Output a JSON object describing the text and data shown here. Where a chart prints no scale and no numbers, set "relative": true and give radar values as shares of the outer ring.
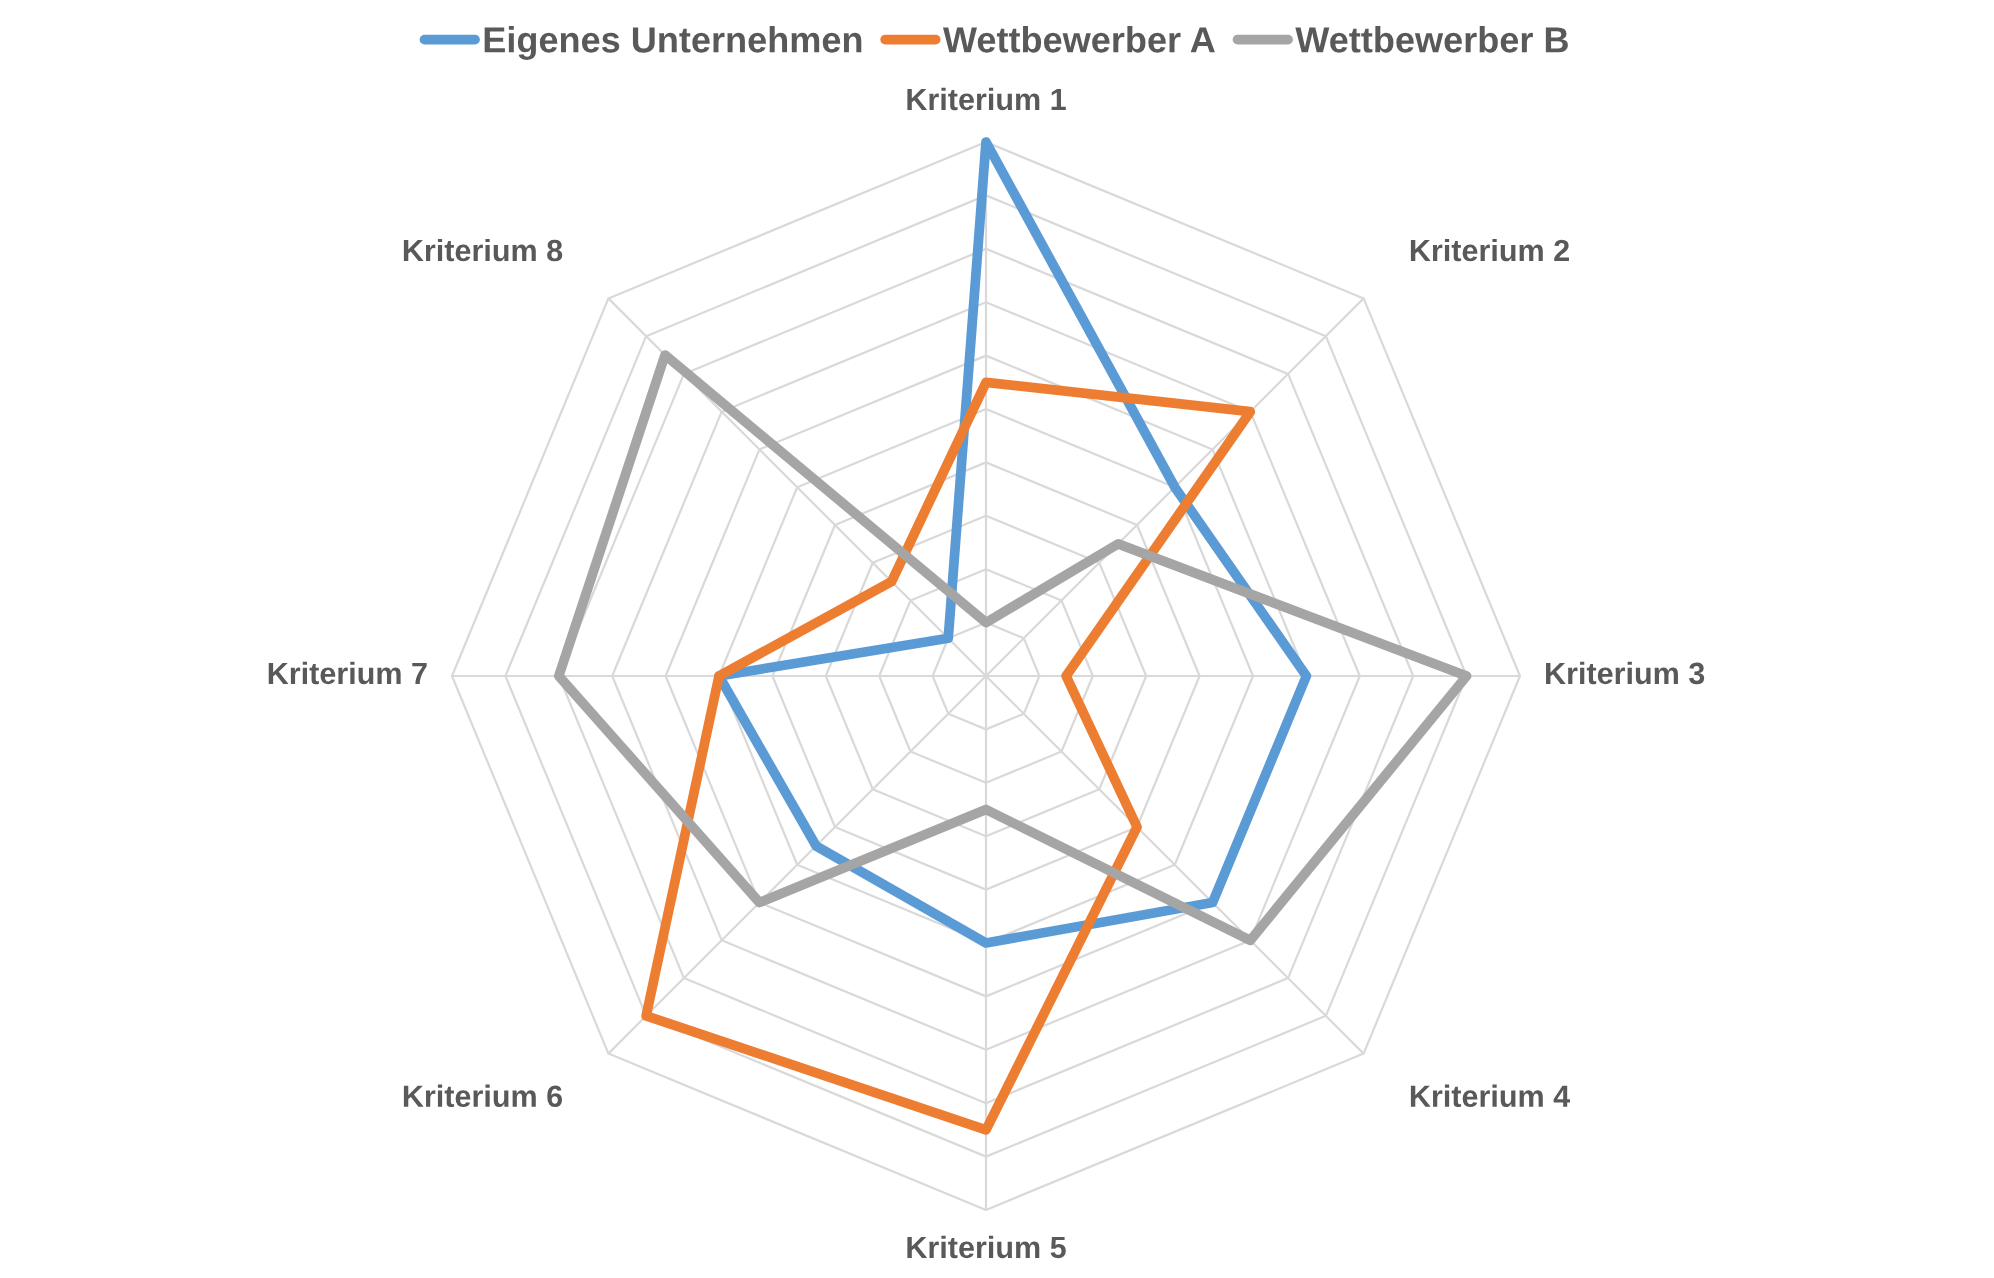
{
  "chart_data": {
    "type": "radar",
    "relative": true,
    "grid": true,
    "legend": "top",
    "categories": [
      "Kriterium 1",
      "Kriterium 2",
      "Kriterium 3",
      "Kriterium 4",
      "Kriterium 5",
      "Kriterium 6",
      "Kriterium 7",
      "Kriterium 8"
    ],
    "series": [
      {
        "name": "Eigenes Unternehmen",
        "color": "#5b9bd5",
        "values": [
          1.0,
          0.5,
          0.6,
          0.6,
          0.5,
          0.45,
          0.5,
          0.1
        ]
      },
      {
        "name": "Wettbewerber A",
        "color": "#ed7d31",
        "values": [
          0.55,
          0.7,
          0.15,
          0.4,
          0.85,
          0.9,
          0.5,
          0.25
        ]
      },
      {
        "name": "Wettbewerber B",
        "color": "#a5a5a5",
        "values": [
          0.1,
          0.35,
          0.9,
          0.7,
          0.25,
          0.6,
          0.8,
          0.85
        ]
      }
    ]
  }
}
